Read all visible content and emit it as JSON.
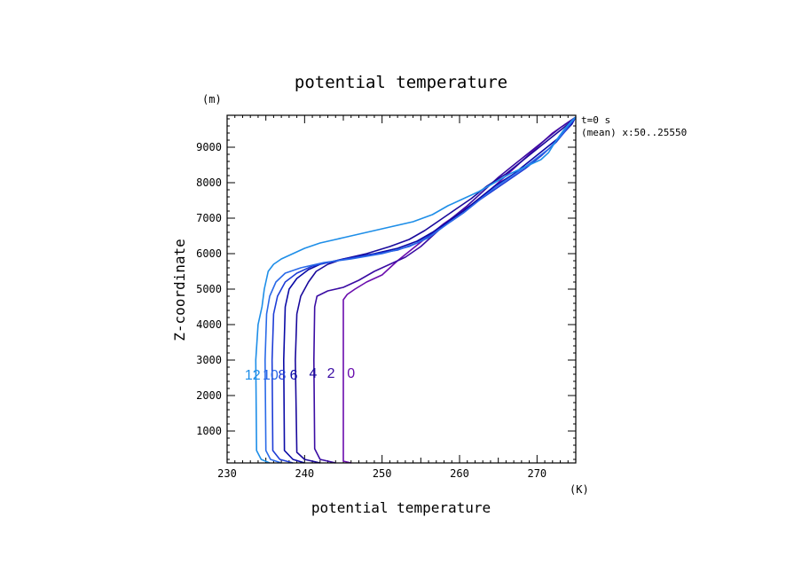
{
  "chart_data": {
    "type": "line",
    "title": "potential temperature",
    "xlabel": "potential temperature",
    "ylabel": "Z-coordinate",
    "xunit": "(K)",
    "yunit": "(m)",
    "xlim": [
      230,
      275
    ],
    "ylim": [
      100,
      9900
    ],
    "x_ticks": [
      230,
      240,
      250,
      260,
      270
    ],
    "y_ticks": [
      1000,
      2000,
      3000,
      4000,
      5000,
      6000,
      7000,
      8000,
      9000
    ],
    "annotations": [
      "t=0 s",
      "(mean) x:50..25550"
    ],
    "grid": false,
    "series": [
      {
        "name": "0",
        "color": "#6a0dad",
        "points": [
          [
            246,
            100
          ],
          [
            245,
            150
          ],
          [
            245,
            4700
          ],
          [
            245.5,
            4850
          ],
          [
            246.5,
            5000
          ],
          [
            248,
            5200
          ],
          [
            250,
            5400
          ],
          [
            252,
            5800
          ],
          [
            254,
            6150
          ],
          [
            256,
            6500
          ],
          [
            258,
            6850
          ],
          [
            260,
            7150
          ],
          [
            262,
            7450
          ],
          [
            264,
            7800
          ],
          [
            266,
            8200
          ],
          [
            268,
            8600
          ],
          [
            270,
            9000
          ],
          [
            272,
            9400
          ],
          [
            275,
            9850
          ]
        ]
      },
      {
        "name": "2",
        "color": "#3a0ca3",
        "points": [
          [
            244,
            100
          ],
          [
            242,
            200
          ],
          [
            241.3,
            500
          ],
          [
            241.2,
            3000
          ],
          [
            241.3,
            4500
          ],
          [
            241.6,
            4800
          ],
          [
            243,
            4950
          ],
          [
            245,
            5050
          ],
          [
            247,
            5250
          ],
          [
            249,
            5500
          ],
          [
            251,
            5700
          ],
          [
            253,
            5900
          ],
          [
            255,
            6200
          ],
          [
            257,
            6600
          ],
          [
            259,
            7000
          ],
          [
            261,
            7350
          ],
          [
            263,
            7750
          ],
          [
            265,
            8150
          ],
          [
            267,
            8500
          ],
          [
            269,
            8850
          ],
          [
            271,
            9200
          ],
          [
            273,
            9550
          ],
          [
            275,
            9850
          ]
        ]
      },
      {
        "name": "4",
        "color": "#1a0a9c",
        "points": [
          [
            242,
            100
          ],
          [
            240,
            200
          ],
          [
            239,
            400
          ],
          [
            238.8,
            3000
          ],
          [
            239,
            4300
          ],
          [
            239.5,
            4800
          ],
          [
            240.5,
            5200
          ],
          [
            241.5,
            5500
          ],
          [
            243,
            5700
          ],
          [
            245,
            5850
          ],
          [
            248,
            6000
          ],
          [
            251,
            6200
          ],
          [
            253.5,
            6400
          ],
          [
            255.5,
            6650
          ],
          [
            257.5,
            6950
          ],
          [
            259.5,
            7250
          ],
          [
            261.5,
            7550
          ],
          [
            263.5,
            7900
          ],
          [
            266,
            8250
          ],
          [
            268,
            8600
          ],
          [
            270,
            8950
          ],
          [
            272,
            9300
          ],
          [
            274,
            9650
          ],
          [
            275,
            9850
          ]
        ]
      },
      {
        "name": "6",
        "color": "#0a0aa6",
        "points": [
          [
            240,
            100
          ],
          [
            238.5,
            200
          ],
          [
            237.4,
            450
          ],
          [
            237.3,
            3000
          ],
          [
            237.5,
            4500
          ],
          [
            238,
            5000
          ],
          [
            239,
            5300
          ],
          [
            240.5,
            5550
          ],
          [
            242,
            5700
          ],
          [
            245,
            5850
          ],
          [
            249,
            6000
          ],
          [
            252,
            6150
          ],
          [
            254.5,
            6350
          ],
          [
            256.5,
            6600
          ],
          [
            258.5,
            6900
          ],
          [
            260.5,
            7200
          ],
          [
            262.5,
            7550
          ],
          [
            264.5,
            7900
          ],
          [
            267,
            8250
          ],
          [
            269,
            8600
          ],
          [
            271,
            8950
          ],
          [
            273,
            9300
          ],
          [
            274.5,
            9650
          ],
          [
            275,
            9850
          ]
        ]
      },
      {
        "name": "8",
        "color": "#1e3dd6",
        "points": [
          [
            238.5,
            100
          ],
          [
            236.8,
            200
          ],
          [
            235.9,
            450
          ],
          [
            235.8,
            3000
          ],
          [
            236,
            4300
          ],
          [
            236.5,
            4800
          ],
          [
            237.5,
            5200
          ],
          [
            239,
            5450
          ],
          [
            241,
            5650
          ],
          [
            244,
            5800
          ],
          [
            248,
            5950
          ],
          [
            252,
            6100
          ],
          [
            254.5,
            6300
          ],
          [
            256.5,
            6550
          ],
          [
            258.5,
            6850
          ],
          [
            260.5,
            7150
          ],
          [
            262.5,
            7500
          ],
          [
            264.5,
            7800
          ],
          [
            266.5,
            8100
          ],
          [
            268.5,
            8400
          ],
          [
            270.5,
            8750
          ],
          [
            272.5,
            9150
          ],
          [
            274,
            9550
          ],
          [
            275,
            9850
          ]
        ]
      },
      {
        "name": "10",
        "color": "#2a6ae8",
        "points": [
          [
            237,
            100
          ],
          [
            235.6,
            200
          ],
          [
            235,
            450
          ],
          [
            234.9,
            3000
          ],
          [
            235.1,
            4300
          ],
          [
            235.5,
            4800
          ],
          [
            236.3,
            5200
          ],
          [
            237.5,
            5450
          ],
          [
            239.5,
            5600
          ],
          [
            242.5,
            5750
          ],
          [
            246,
            5850
          ],
          [
            250,
            6000
          ],
          [
            253.5,
            6200
          ],
          [
            256,
            6450
          ],
          [
            258.5,
            6850
          ],
          [
            260.5,
            7150
          ],
          [
            262.5,
            7500
          ],
          [
            264.5,
            7850
          ],
          [
            266.5,
            8150
          ],
          [
            268.5,
            8450
          ],
          [
            270,
            8700
          ],
          [
            271.5,
            8950
          ],
          [
            273,
            9300
          ],
          [
            274,
            9600
          ],
          [
            275,
            9850
          ]
        ]
      },
      {
        "name": "12",
        "color": "#1e8ee8",
        "points": [
          [
            235.5,
            100
          ],
          [
            234.4,
            200
          ],
          [
            233.8,
            450
          ],
          [
            233.7,
            3000
          ],
          [
            234,
            4000
          ],
          [
            234.5,
            4500
          ],
          [
            234.8,
            5000
          ],
          [
            235.3,
            5500
          ],
          [
            236,
            5700
          ],
          [
            237,
            5850
          ],
          [
            238.5,
            6000
          ],
          [
            240,
            6150
          ],
          [
            242,
            6300
          ],
          [
            245,
            6450
          ],
          [
            248,
            6600
          ],
          [
            251,
            6750
          ],
          [
            254,
            6900
          ],
          [
            256.5,
            7100
          ],
          [
            258.5,
            7350
          ],
          [
            260.5,
            7550
          ],
          [
            262.5,
            7750
          ],
          [
            264.5,
            8000
          ],
          [
            266.5,
            8250
          ],
          [
            268.5,
            8450
          ],
          [
            270.5,
            8650
          ],
          [
            271.5,
            8850
          ],
          [
            272.5,
            9200
          ],
          [
            273.5,
            9500
          ],
          [
            274.5,
            9750
          ],
          [
            275,
            9850
          ]
        ]
      }
    ],
    "curve_labels": [
      {
        "text": "0",
        "x": 246.0,
        "y": 2500,
        "color": "#6a0dad"
      },
      {
        "text": "2",
        "x": 243.4,
        "y": 2500,
        "color": "#3a0ca3"
      },
      {
        "text": "4",
        "x": 241.1,
        "y": 2500,
        "color": "#1a0a9c"
      },
      {
        "text": "6",
        "x": 238.6,
        "y": 2450,
        "color": "#0a0aa6"
      },
      {
        "text": "8",
        "x": 237.1,
        "y": 2450,
        "color": "#1e3dd6"
      },
      {
        "text": "10",
        "x": 235.6,
        "y": 2450,
        "color": "#2a6ae8"
      },
      {
        "text": "12",
        "x": 233.3,
        "y": 2450,
        "color": "#1e8ee8"
      }
    ]
  }
}
